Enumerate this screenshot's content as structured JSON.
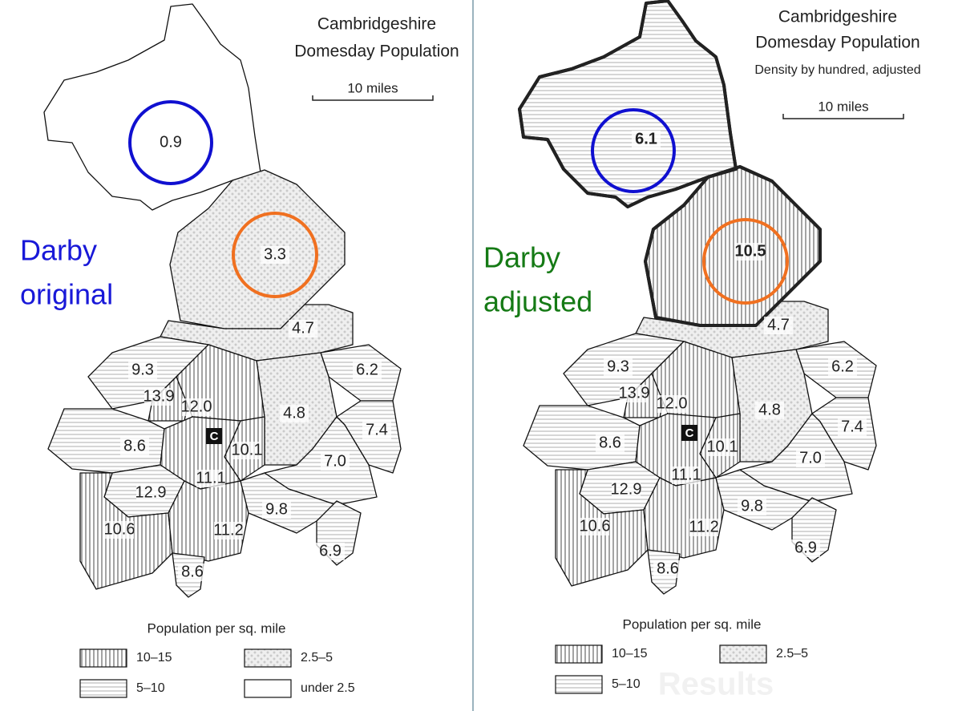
{
  "panels": [
    {
      "title": [
        "Cambridgeshire",
        "Domesday Population"
      ],
      "scale_label": "10 miles",
      "annotation": [
        "Darby",
        "original"
      ],
      "regions": [
        "0.9",
        "3.3",
        "4.7",
        "6.2",
        "4.8",
        "7.4",
        "7.0",
        "9.3",
        "13.9",
        "12.0",
        "8.6",
        "10.1",
        "11.1",
        "12.9",
        "10.6",
        "11.2",
        "9.8",
        "6.9",
        "8.6"
      ],
      "city": "C",
      "legend": {
        "title": "Population per sq. mile",
        "items": [
          "10–15",
          "2.5–5",
          "5–10",
          "under 2.5"
        ]
      }
    },
    {
      "title": [
        "Cambridgeshire",
        "Domesday Population"
      ],
      "subtitle": "Density by hundred, adjusted",
      "scale_label": "10 miles",
      "annotation": [
        "Darby",
        "adjusted"
      ],
      "regions": [
        "6.1",
        "10.5",
        "4.7",
        "6.2",
        "4.8",
        "7.4",
        "7.0",
        "9.3",
        "13.9",
        "12.0",
        "8.6",
        "10.1",
        "11.1",
        "12.9",
        "10.6",
        "11.2",
        "9.8",
        "6.9",
        "8.6"
      ],
      "city": "C",
      "legend": {
        "title": "Population per sq. mile",
        "items": [
          "10–15",
          "2.5–5",
          "5–10"
        ]
      },
      "watermark": "Results"
    }
  ]
}
